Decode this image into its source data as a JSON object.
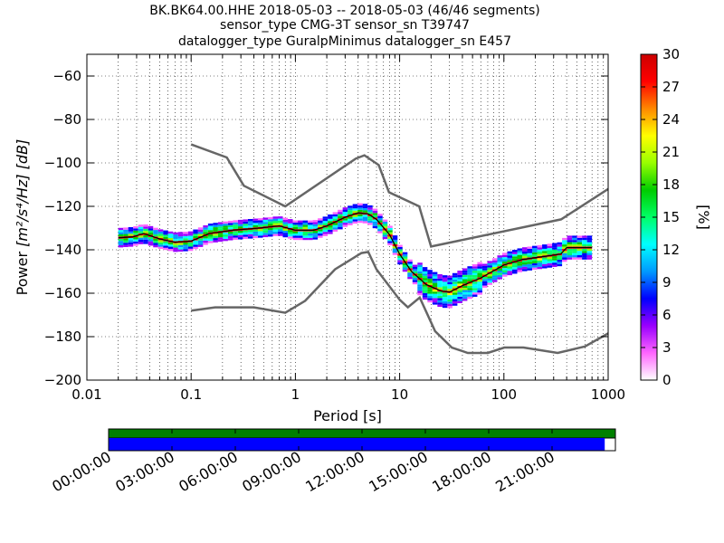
{
  "title_lines": [
    "BK.BK64.00.HHE   2018-05-03 -- 2018-05-03  (46/46 segments)",
    "sensor_type CMG-3T sensor_sn T39747",
    "datalogger_type GuralpMinimus datalogger_sn E457"
  ],
  "chart_data": {
    "type": "heatmap",
    "xlabel": "Period [s]",
    "ylabel_main": "Power ",
    "ylabel_units": "[m²/s⁴/Hz] [dB]",
    "x_scale": "log",
    "xlim": [
      0.01,
      1000
    ],
    "ylim": [
      -200,
      -50
    ],
    "x_ticks": [
      {
        "value": 0.01,
        "label": "0.01"
      },
      {
        "value": 0.1,
        "label": "0.1"
      },
      {
        "value": 1,
        "label": "1"
      },
      {
        "value": 10,
        "label": "10"
      },
      {
        "value": 100,
        "label": "100"
      },
      {
        "value": 1000,
        "label": "1000"
      }
    ],
    "y_ticks": [
      -60,
      -80,
      -100,
      -120,
      -140,
      -160,
      -180,
      -200
    ],
    "grid": true,
    "colorbar": {
      "label": "[%]",
      "min": 0,
      "max": 30,
      "ticks": [
        0,
        3,
        6,
        9,
        12,
        15,
        18,
        21,
        24,
        27,
        30
      ],
      "colors": [
        "#ffffff",
        "#ff66ff",
        "#9900ff",
        "#0000ff",
        "#0099ff",
        "#00ffff",
        "#00ff66",
        "#00cc00",
        "#99ff00",
        "#ffff00",
        "#ff8800",
        "#ff0000",
        "#cc0000"
      ]
    },
    "series": [
      {
        "role": "high-noise-model",
        "color": "#666666",
        "points": [
          [
            0.1,
            -91.5
          ],
          [
            0.22,
            -97.5
          ],
          [
            0.32,
            -110.5
          ],
          [
            0.8,
            -120
          ],
          [
            3.8,
            -98
          ],
          [
            4.6,
            -96.5
          ],
          [
            6.3,
            -101
          ],
          [
            7.9,
            -113.5
          ],
          [
            15.4,
            -120
          ],
          [
            20,
            -138.5
          ],
          [
            354,
            -126
          ],
          [
            1000,
            -112
          ]
        ]
      },
      {
        "role": "low-noise-model",
        "color": "#666666",
        "points": [
          [
            0.1,
            -168
          ],
          [
            0.17,
            -166.5
          ],
          [
            0.4,
            -166.5
          ],
          [
            0.8,
            -169
          ],
          [
            1.24,
            -163.5
          ],
          [
            2.4,
            -149
          ],
          [
            4.3,
            -141.5
          ],
          [
            5.0,
            -141
          ],
          [
            6.0,
            -149
          ],
          [
            10,
            -163
          ],
          [
            12,
            -166.5
          ],
          [
            15.6,
            -162
          ],
          [
            21.9,
            -177.5
          ],
          [
            31.6,
            -185
          ],
          [
            45,
            -187.5
          ],
          [
            70,
            -187.5
          ],
          [
            101,
            -185
          ],
          [
            154,
            -185
          ],
          [
            328,
            -187.5
          ],
          [
            600,
            -184.5
          ],
          [
            1000,
            -178.5
          ]
        ]
      },
      {
        "role": "median",
        "color": "#000000",
        "points": [
          [
            0.02,
            -134.5
          ],
          [
            0.028,
            -134
          ],
          [
            0.035,
            -132.5
          ],
          [
            0.05,
            -135
          ],
          [
            0.07,
            -136.5
          ],
          [
            0.1,
            -136
          ],
          [
            0.15,
            -132.5
          ],
          [
            0.25,
            -131
          ],
          [
            0.45,
            -130
          ],
          [
            0.7,
            -129
          ],
          [
            1,
            -131
          ],
          [
            1.5,
            -131
          ],
          [
            2,
            -129
          ],
          [
            3,
            -125
          ],
          [
            4,
            -123
          ],
          [
            5,
            -123.5
          ],
          [
            6,
            -126
          ],
          [
            8,
            -133
          ],
          [
            10,
            -142
          ],
          [
            13,
            -150
          ],
          [
            18,
            -156
          ],
          [
            25,
            -159
          ],
          [
            30,
            -159.5
          ],
          [
            40,
            -156.5
          ],
          [
            60,
            -153
          ],
          [
            100,
            -147
          ],
          [
            150,
            -144.5
          ],
          [
            250,
            -143
          ],
          [
            350,
            -142
          ],
          [
            400,
            -139
          ],
          [
            700,
            -139
          ]
        ]
      }
    ],
    "density_band": {
      "description": "probability density of PSD values",
      "min_period": 0.02,
      "max_period": 700
    }
  },
  "timeline": {
    "labels": [
      "00:00:00",
      "03:00:00",
      "06:00:00",
      "09:00:00",
      "12:00:00",
      "15:00:00",
      "18:00:00",
      "21:00:00"
    ],
    "bar_colors": {
      "top": "#008000",
      "bottom": "#0000ff"
    },
    "bottom_coverage_fraction": 0.979
  }
}
